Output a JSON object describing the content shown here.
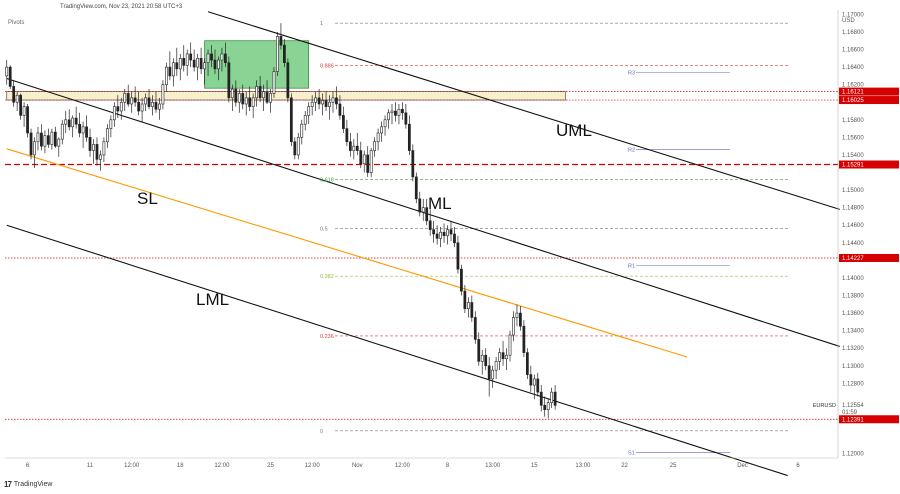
{
  "header": {
    "source_line": "TradingView.com, Nov 23, 2021 20:58 UTC+3",
    "indicator": "Pivots",
    "currency": "USD",
    "brand": "TradingView"
  },
  "colors": {
    "up": "#2a2a2a",
    "down": "#2a2a2a",
    "price_tag": "#d50000",
    "median": "#ff9800",
    "zone_green": "#7ccf8a",
    "zone_yellow": "#f5f0c8",
    "fib_green": "#43a047",
    "fib_red": "#e53935",
    "pivot": "#5c6bc0"
  },
  "chart_data": {
    "type": "candlestick",
    "symbol": "EURUSD",
    "last_price": "1.12554",
    "countdown": "01:59",
    "y_range": [
      1.1195,
      1.1705
    ],
    "y_ticks": [
      "1.17000",
      "1.16800",
      "1.16600",
      "1.16400",
      "1.16200",
      "1.15800",
      "1.15600",
      "1.15400",
      "1.15000",
      "1.14800",
      "1.14600",
      "1.14400",
      "1.14000",
      "1.13800",
      "1.13600",
      "1.13400",
      "1.13200",
      "1.13000",
      "1.12800",
      "1.12000"
    ],
    "x_ticks": [
      {
        "label": "6",
        "idx": 6
      },
      {
        "label": "11",
        "idx": 24
      },
      {
        "label": "12:00",
        "idx": 36
      },
      {
        "label": "18",
        "idx": 50
      },
      {
        "label": "12:00",
        "idx": 62
      },
      {
        "label": "25",
        "idx": 76
      },
      {
        "label": "12:00",
        "idx": 88
      },
      {
        "label": "Nov",
        "idx": 101
      },
      {
        "label": "12:00",
        "idx": 114
      },
      {
        "label": "8",
        "idx": 127
      },
      {
        "label": "13:00",
        "idx": 140
      },
      {
        "label": "15",
        "idx": 152
      },
      {
        "label": "13:00",
        "idx": 166
      },
      {
        "label": "22",
        "idx": 178
      },
      {
        "label": "25",
        "idx": 192
      },
      {
        "label": "Dec",
        "idx": 212
      },
      {
        "label": "6",
        "idx": 228
      }
    ],
    "x_count": 240,
    "price_tags": [
      {
        "value": 1.16121,
        "label": "1.16121"
      },
      {
        "value": 1.16025,
        "label": "1.16025"
      },
      {
        "value": 1.15291,
        "label": "1.15291"
      },
      {
        "value": 1.14227,
        "label": "1.14227"
      },
      {
        "value": 1.12391,
        "label": "1.12391"
      }
    ],
    "fib_levels": [
      {
        "label": "1",
        "value": 1.169,
        "color": "#777"
      },
      {
        "label": "0.886",
        "value": 1.1642,
        "color": "#e53935"
      },
      {
        "label": "0.618",
        "value": 1.1512,
        "color": "#43a047"
      },
      {
        "label": "0.5",
        "value": 1.1456,
        "color": "#777"
      },
      {
        "label": "0.382",
        "value": 1.1402,
        "color": "#8bc34a"
      },
      {
        "label": "0.236",
        "value": 1.1334,
        "color": "#e53935"
      },
      {
        "label": "0",
        "value": 1.1226,
        "color": "#777"
      }
    ],
    "pivots": [
      {
        "label": "R3",
        "value": 1.1634
      },
      {
        "label": "R2",
        "value": 1.1546
      },
      {
        "label": "R1",
        "value": 1.1414
      },
      {
        "label": "S1",
        "value": 1.1201
      }
    ],
    "channel_labels": {
      "uml": "UML",
      "ml": "ML",
      "sl": "SL",
      "lml": "LML"
    },
    "lines": {
      "uml": [
        {
          "idx": 58,
          "v": 1.1703
        },
        {
          "idx": 240,
          "v": 1.1478
        }
      ],
      "ml": [
        {
          "idx": 0,
          "v": 1.1627
        },
        {
          "idx": 240,
          "v": 1.1322
        }
      ],
      "sl": [
        {
          "idx": 0,
          "v": 1.1547
        },
        {
          "idx": 196,
          "v": 1.131
        }
      ],
      "lml": [
        {
          "idx": 0,
          "v": 1.146
        },
        {
          "idx": 225,
          "v": 1.1175
        }
      ]
    },
    "zones": [
      {
        "kind": "green",
        "i0": 57,
        "i1": 87,
        "top": 1.167,
        "bottom": 1.1616
      },
      {
        "kind": "yellow",
        "i0": 0,
        "i1": 161,
        "top": 1.16121,
        "bottom": 1.16025
      }
    ],
    "candles": [
      [
        1.163,
        1.1648,
        1.162,
        1.164
      ],
      [
        1.164,
        1.1642,
        1.1615,
        1.1618
      ],
      [
        1.1618,
        1.1625,
        1.1595,
        1.16
      ],
      [
        1.16,
        1.1612,
        1.159,
        1.1608
      ],
      [
        1.1608,
        1.161,
        1.158,
        1.1585
      ],
      [
        1.1585,
        1.16,
        1.1572,
        1.1595
      ],
      [
        1.1595,
        1.1598,
        1.156,
        1.1565
      ],
      [
        1.1565,
        1.157,
        1.1535,
        1.154
      ],
      [
        1.154,
        1.156,
        1.1525,
        1.1555
      ],
      [
        1.1555,
        1.1572,
        1.1545,
        1.1565
      ],
      [
        1.1565,
        1.1575,
        1.1545,
        1.155
      ],
      [
        1.155,
        1.1568,
        1.1542,
        1.1562
      ],
      [
        1.1562,
        1.157,
        1.1548,
        1.1552
      ],
      [
        1.1552,
        1.157,
        1.1546,
        1.1566
      ],
      [
        1.1566,
        1.1572,
        1.1548,
        1.155
      ],
      [
        1.155,
        1.156,
        1.1538,
        1.1558
      ],
      [
        1.1558,
        1.158,
        1.1552,
        1.1575
      ],
      [
        1.1575,
        1.159,
        1.1565,
        1.158
      ],
      [
        1.158,
        1.1592,
        1.1568,
        1.1572
      ],
      [
        1.1572,
        1.1585,
        1.156,
        1.1582
      ],
      [
        1.1582,
        1.1595,
        1.157,
        1.1575
      ],
      [
        1.1575,
        1.1588,
        1.156,
        1.1565
      ],
      [
        1.1565,
        1.1578,
        1.1548,
        1.1572
      ],
      [
        1.1572,
        1.1585,
        1.1555,
        1.156
      ],
      [
        1.156,
        1.157,
        1.1538,
        1.1545
      ],
      [
        1.1545,
        1.1558,
        1.153,
        1.1552
      ],
      [
        1.1552,
        1.156,
        1.1528,
        1.1535
      ],
      [
        1.1535,
        1.1545,
        1.1522,
        1.154
      ],
      [
        1.154,
        1.156,
        1.1532,
        1.1555
      ],
      [
        1.1555,
        1.1575,
        1.1548,
        1.157
      ],
      [
        1.157,
        1.1585,
        1.156,
        1.158
      ],
      [
        1.158,
        1.16,
        1.1572,
        1.1595
      ],
      [
        1.1595,
        1.1608,
        1.1582,
        1.159
      ],
      [
        1.159,
        1.1605,
        1.158,
        1.16
      ],
      [
        1.16,
        1.1615,
        1.159,
        1.161
      ],
      [
        1.161,
        1.162,
        1.1595,
        1.1598
      ],
      [
        1.1598,
        1.1612,
        1.1588,
        1.1605
      ],
      [
        1.1605,
        1.1618,
        1.1595,
        1.16
      ],
      [
        1.16,
        1.1612,
        1.1585,
        1.159
      ],
      [
        1.159,
        1.1605,
        1.1578,
        1.1598
      ],
      [
        1.1598,
        1.161,
        1.159,
        1.1605
      ],
      [
        1.1605,
        1.1615,
        1.1592,
        1.1595
      ],
      [
        1.1595,
        1.1608,
        1.1585,
        1.16
      ],
      [
        1.16,
        1.1612,
        1.1588,
        1.1592
      ],
      [
        1.1592,
        1.1605,
        1.158,
        1.1598
      ],
      [
        1.1598,
        1.1625,
        1.1592,
        1.162
      ],
      [
        1.162,
        1.1645,
        1.1612,
        1.164
      ],
      [
        1.164,
        1.1658,
        1.1625,
        1.163
      ],
      [
        1.163,
        1.165,
        1.1618,
        1.1645
      ],
      [
        1.1645,
        1.1662,
        1.163,
        1.1638
      ],
      [
        1.1638,
        1.1655,
        1.1625,
        1.165
      ],
      [
        1.165,
        1.1665,
        1.1635,
        1.1642
      ],
      [
        1.1642,
        1.166,
        1.163,
        1.1655
      ],
      [
        1.1655,
        1.1668,
        1.164,
        1.1648
      ],
      [
        1.1648,
        1.166,
        1.1635,
        1.164
      ],
      [
        1.164,
        1.1655,
        1.1625,
        1.165
      ],
      [
        1.165,
        1.1662,
        1.1632,
        1.1638
      ],
      [
        1.1638,
        1.165,
        1.162,
        1.1645
      ],
      [
        1.1645,
        1.166,
        1.163,
        1.1655
      ],
      [
        1.1655,
        1.1665,
        1.164,
        1.1648
      ],
      [
        1.1648,
        1.166,
        1.1632,
        1.1638
      ],
      [
        1.1638,
        1.1652,
        1.1625,
        1.1648
      ],
      [
        1.1648,
        1.1662,
        1.1635,
        1.1655
      ],
      [
        1.1655,
        1.1668,
        1.164,
        1.1645
      ],
      [
        1.1645,
        1.1652,
        1.16,
        1.1605
      ],
      [
        1.1605,
        1.162,
        1.159,
        1.1615
      ],
      [
        1.1615,
        1.1625,
        1.1595,
        1.16
      ],
      [
        1.16,
        1.1615,
        1.1588,
        1.161
      ],
      [
        1.161,
        1.162,
        1.1592,
        1.1598
      ],
      [
        1.1598,
        1.1612,
        1.1585,
        1.1605
      ],
      [
        1.1605,
        1.1618,
        1.159,
        1.1595
      ],
      [
        1.1595,
        1.161,
        1.1582,
        1.1605
      ],
      [
        1.1605,
        1.1625,
        1.1595,
        1.1618
      ],
      [
        1.1618,
        1.163,
        1.16,
        1.1605
      ],
      [
        1.1605,
        1.162,
        1.159,
        1.1612
      ],
      [
        1.1612,
        1.1625,
        1.1598,
        1.16
      ],
      [
        1.16,
        1.1615,
        1.1588,
        1.161
      ],
      [
        1.161,
        1.164,
        1.1605,
        1.1635
      ],
      [
        1.1635,
        1.168,
        1.163,
        1.1675
      ],
      [
        1.1675,
        1.169,
        1.166,
        1.1665
      ],
      [
        1.1665,
        1.1672,
        1.164,
        1.1645
      ],
      [
        1.1645,
        1.165,
        1.16,
        1.1605
      ],
      [
        1.1605,
        1.161,
        1.155,
        1.1555
      ],
      [
        1.1555,
        1.156,
        1.1535,
        1.154
      ],
      [
        1.154,
        1.1565,
        1.1535,
        1.156
      ],
      [
        1.156,
        1.158,
        1.1552,
        1.1575
      ],
      [
        1.1575,
        1.159,
        1.1568,
        1.1585
      ],
      [
        1.1585,
        1.16,
        1.1575,
        1.1595
      ],
      [
        1.1595,
        1.1608,
        1.1585,
        1.16
      ],
      [
        1.16,
        1.1612,
        1.159,
        1.1605
      ],
      [
        1.1605,
        1.1615,
        1.1592,
        1.1598
      ],
      [
        1.1598,
        1.161,
        1.1585,
        1.1602
      ],
      [
        1.1602,
        1.1612,
        1.159,
        1.1595
      ],
      [
        1.1595,
        1.1608,
        1.158,
        1.16
      ],
      [
        1.16,
        1.1612,
        1.1588,
        1.1605
      ],
      [
        1.1605,
        1.1618,
        1.1592,
        1.1598
      ],
      [
        1.1598,
        1.1608,
        1.158,
        1.1585
      ],
      [
        1.1585,
        1.1595,
        1.1565,
        1.157
      ],
      [
        1.157,
        1.158,
        1.155,
        1.1555
      ],
      [
        1.1555,
        1.1565,
        1.1538,
        1.1545
      ],
      [
        1.1545,
        1.1558,
        1.1535,
        1.155
      ],
      [
        1.155,
        1.1565,
        1.154,
        1.1545
      ],
      [
        1.1545,
        1.1555,
        1.1525,
        1.153
      ],
      [
        1.153,
        1.1545,
        1.152,
        1.154
      ],
      [
        1.154,
        1.155,
        1.1515,
        1.152
      ],
      [
        1.152,
        1.1548,
        1.1515,
        1.1545
      ],
      [
        1.1545,
        1.156,
        1.1538,
        1.1555
      ],
      [
        1.1555,
        1.157,
        1.1545,
        1.1565
      ],
      [
        1.1565,
        1.1578,
        1.1555,
        1.1572
      ],
      [
        1.1572,
        1.1585,
        1.1562,
        1.158
      ],
      [
        1.158,
        1.1592,
        1.157,
        1.1588
      ],
      [
        1.1588,
        1.1598,
        1.1575,
        1.159
      ],
      [
        1.159,
        1.16,
        1.1578,
        1.1585
      ],
      [
        1.1585,
        1.1598,
        1.1575,
        1.1592
      ],
      [
        1.1592,
        1.16,
        1.158,
        1.1588
      ],
      [
        1.1588,
        1.1598,
        1.157,
        1.1575
      ],
      [
        1.1575,
        1.1585,
        1.154,
        1.1545
      ],
      [
        1.1545,
        1.1552,
        1.151,
        1.1515
      ],
      [
        1.1515,
        1.152,
        1.1485,
        1.149
      ],
      [
        1.149,
        1.1498,
        1.147,
        1.1475
      ],
      [
        1.1475,
        1.149,
        1.1465,
        1.148
      ],
      [
        1.148,
        1.149,
        1.146,
        1.1465
      ],
      [
        1.1465,
        1.1478,
        1.1448,
        1.1455
      ],
      [
        1.1455,
        1.1465,
        1.144,
        1.145
      ],
      [
        1.145,
        1.146,
        1.1438,
        1.1445
      ],
      [
        1.1445,
        1.1458,
        1.1435,
        1.1452
      ],
      [
        1.1452,
        1.1462,
        1.144,
        1.1448
      ],
      [
        1.1448,
        1.146,
        1.1438,
        1.1455
      ],
      [
        1.1455,
        1.1465,
        1.1442,
        1.145
      ],
      [
        1.145,
        1.1458,
        1.1435,
        1.144
      ],
      [
        1.144,
        1.1448,
        1.1405,
        1.141
      ],
      [
        1.141,
        1.1415,
        1.138,
        1.1385
      ],
      [
        1.1385,
        1.1392,
        1.136,
        1.1365
      ],
      [
        1.1365,
        1.1378,
        1.1355,
        1.1372
      ],
      [
        1.1372,
        1.138,
        1.135,
        1.1355
      ],
      [
        1.1355,
        1.1362,
        1.1325,
        1.133
      ],
      [
        1.133,
        1.1338,
        1.13,
        1.1305
      ],
      [
        1.1305,
        1.1318,
        1.129,
        1.1312
      ],
      [
        1.1312,
        1.132,
        1.1295,
        1.13
      ],
      [
        1.13,
        1.131,
        1.1265,
        1.1285
      ],
      [
        1.1285,
        1.13,
        1.1275,
        1.1295
      ],
      [
        1.1295,
        1.131,
        1.1285,
        1.1305
      ],
      [
        1.1305,
        1.132,
        1.1295,
        1.1315
      ],
      [
        1.1315,
        1.1328,
        1.13,
        1.1308
      ],
      [
        1.1308,
        1.132,
        1.1295,
        1.1312
      ],
      [
        1.1312,
        1.134,
        1.1305,
        1.1335
      ],
      [
        1.1335,
        1.1362,
        1.1328,
        1.1355
      ],
      [
        1.1355,
        1.137,
        1.1345,
        1.136
      ],
      [
        1.136,
        1.1368,
        1.134,
        1.1345
      ],
      [
        1.1345,
        1.1352,
        1.131,
        1.1315
      ],
      [
        1.1315,
        1.132,
        1.1285,
        1.129
      ],
      [
        1.129,
        1.13,
        1.127,
        1.1278
      ],
      [
        1.1278,
        1.129,
        1.1262,
        1.1285
      ],
      [
        1.1285,
        1.1292,
        1.1265,
        1.127
      ],
      [
        1.127,
        1.1278,
        1.1248,
        1.1255
      ],
      [
        1.1255,
        1.1265,
        1.1242,
        1.125
      ],
      [
        1.125,
        1.1262,
        1.124,
        1.1258
      ],
      [
        1.1258,
        1.1275,
        1.1252,
        1.127
      ],
      [
        1.127,
        1.1278,
        1.125,
        1.1255
      ]
    ]
  }
}
